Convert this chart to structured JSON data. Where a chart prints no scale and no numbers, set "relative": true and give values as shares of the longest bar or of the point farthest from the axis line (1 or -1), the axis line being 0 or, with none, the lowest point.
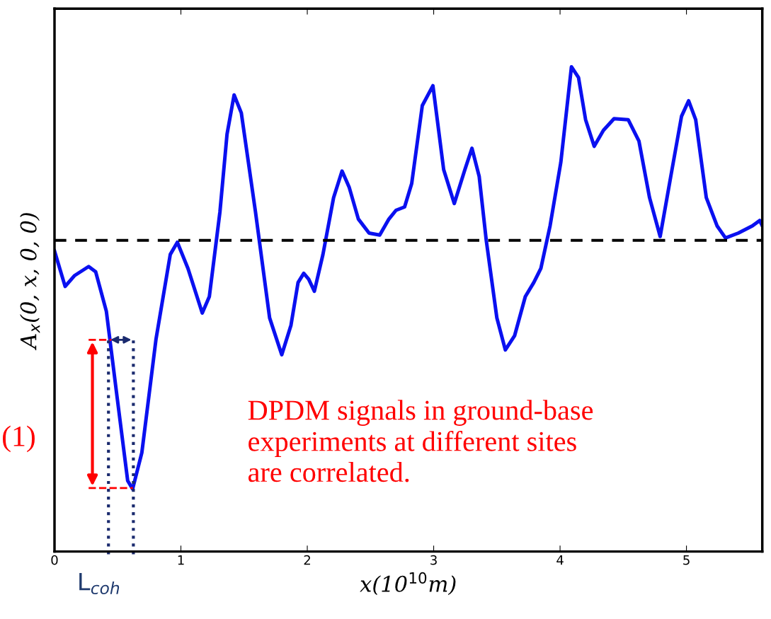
{
  "chart_data": {
    "type": "line",
    "relative": true,
    "xlabel": "x(10$^{10}$m)",
    "ylabel": "A$_{x}$(0, x, 0, 0)",
    "xlim": [
      0,
      5.6
    ],
    "xticks": [
      0,
      1,
      2,
      3,
      4,
      5
    ],
    "grid": false,
    "marker": "none",
    "line_style": "solid",
    "ref_lines": [
      {
        "axis": "y",
        "value": 0.642,
        "color": "#000000",
        "line_style": "dashed"
      }
    ],
    "annotations": [
      "(1)",
      "L$_{coh}$",
      "DPDM signals in ground-base\nexperiments at different sites\nare correlated."
    ],
    "series": [
      {
        "color": "#0a10f0",
        "x": [
          0.0,
          0.084,
          0.157,
          0.27,
          0.326,
          0.41,
          0.494,
          0.579,
          0.618,
          0.691,
          0.803,
          0.916,
          0.972,
          1.056,
          1.169,
          1.225,
          1.309,
          1.365,
          1.421,
          1.478,
          1.59,
          1.702,
          1.798,
          1.871,
          1.927,
          1.972,
          2.011,
          2.056,
          2.124,
          2.208,
          2.275,
          2.331,
          2.404,
          2.489,
          2.573,
          2.646,
          2.702,
          2.77,
          2.826,
          2.91,
          2.994,
          3.079,
          3.163,
          3.247,
          3.303,
          3.36,
          3.416,
          3.5,
          3.567,
          3.64,
          3.725,
          3.792,
          3.848,
          3.921,
          4.006,
          4.09,
          4.146,
          4.202,
          4.27,
          4.343,
          4.427,
          4.539,
          4.624,
          4.708,
          4.792,
          4.876,
          4.961,
          5.017,
          5.073,
          5.157,
          5.242,
          5.309,
          5.41,
          5.522,
          5.579,
          5.6
        ],
        "values": [
          0.62,
          0.547,
          0.569,
          0.588,
          0.577,
          0.496,
          0.321,
          0.146,
          0.129,
          0.204,
          0.438,
          0.613,
          0.638,
          0.584,
          0.492,
          0.526,
          0.701,
          0.861,
          0.942,
          0.905,
          0.701,
          0.482,
          0.406,
          0.467,
          0.555,
          0.574,
          0.562,
          0.537,
          0.613,
          0.73,
          0.785,
          0.752,
          0.686,
          0.657,
          0.653,
          0.686,
          0.704,
          0.711,
          0.759,
          0.92,
          0.961,
          0.788,
          0.718,
          0.788,
          0.832,
          0.774,
          0.642,
          0.482,
          0.416,
          0.445,
          0.526,
          0.555,
          0.584,
          0.672,
          0.803,
          1.0,
          0.978,
          0.891,
          0.836,
          0.869,
          0.893,
          0.891,
          0.847,
          0.73,
          0.65,
          0.774,
          0.898,
          0.93,
          0.891,
          0.73,
          0.672,
          0.647,
          0.657,
          0.672,
          0.683,
          0.672
        ]
      }
    ]
  }
}
